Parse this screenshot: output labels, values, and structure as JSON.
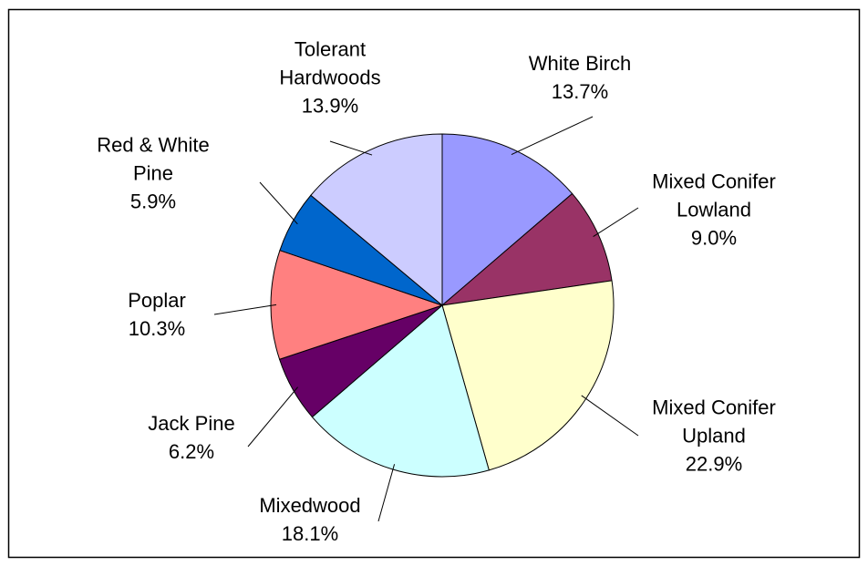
{
  "chart_data": {
    "type": "pie",
    "categories": [
      "White Birch",
      "Mixed Conifer Lowland",
      "Mixed Conifer Upland",
      "Mixedwood",
      "Jack Pine",
      "Poplar",
      "Red & White Pine",
      "Tolerant Hardwoods"
    ],
    "values": [
      13.7,
      9.0,
      22.9,
      18.1,
      6.2,
      10.3,
      5.9,
      13.9
    ],
    "value_labels": [
      "13.7%",
      "9.0%",
      "22.9%",
      "18.1%",
      "6.2%",
      "10.3%",
      "5.9%",
      "13.9%"
    ],
    "colors": [
      "#9999ff",
      "#993366",
      "#ffffcc",
      "#ccffff",
      "#660066",
      "#ff8080",
      "#0066cc",
      "#ccccff"
    ]
  }
}
